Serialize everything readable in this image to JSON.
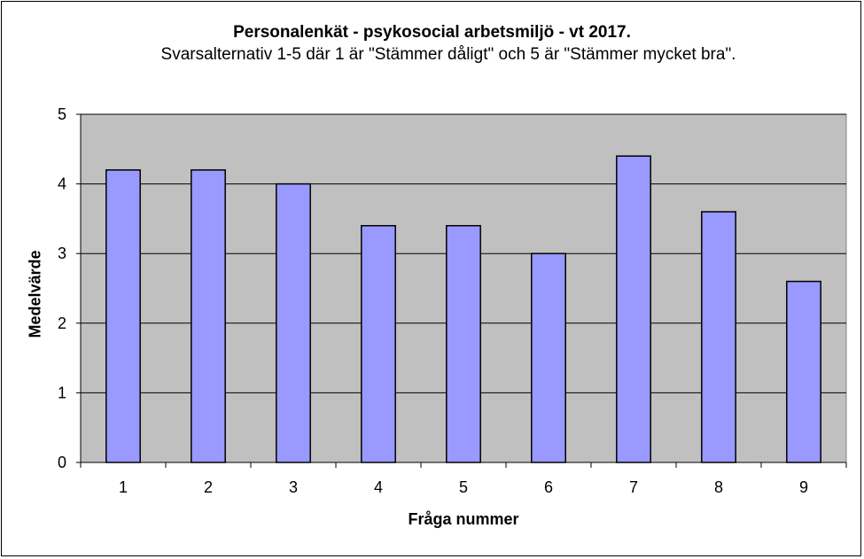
{
  "chart_data": {
    "type": "bar",
    "title": "Personalenkät - psykosocial arbetsmiljö - vt 2017.",
    "subtitle": "Svarsalternativ 1-5 där 1 är \"Stämmer dåligt\" och 5 är \"Stämmer mycket bra\".",
    "xlabel": "Fråga nummer",
    "ylabel": "Medelvärde",
    "categories": [
      "1",
      "2",
      "3",
      "4",
      "5",
      "6",
      "7",
      "8",
      "9"
    ],
    "values": [
      4.2,
      4.2,
      4.0,
      3.4,
      3.4,
      3.0,
      4.4,
      3.6,
      2.6
    ],
    "ylim": [
      0,
      5
    ],
    "yticks": [
      "0",
      "1",
      "2",
      "3",
      "4",
      "5"
    ],
    "grid": true,
    "legend": "none",
    "colors": {
      "bar_fill": "#9999ff",
      "bar_stroke": "#000000",
      "plot_background": "#c0c0c0",
      "grid": "#000000"
    }
  }
}
